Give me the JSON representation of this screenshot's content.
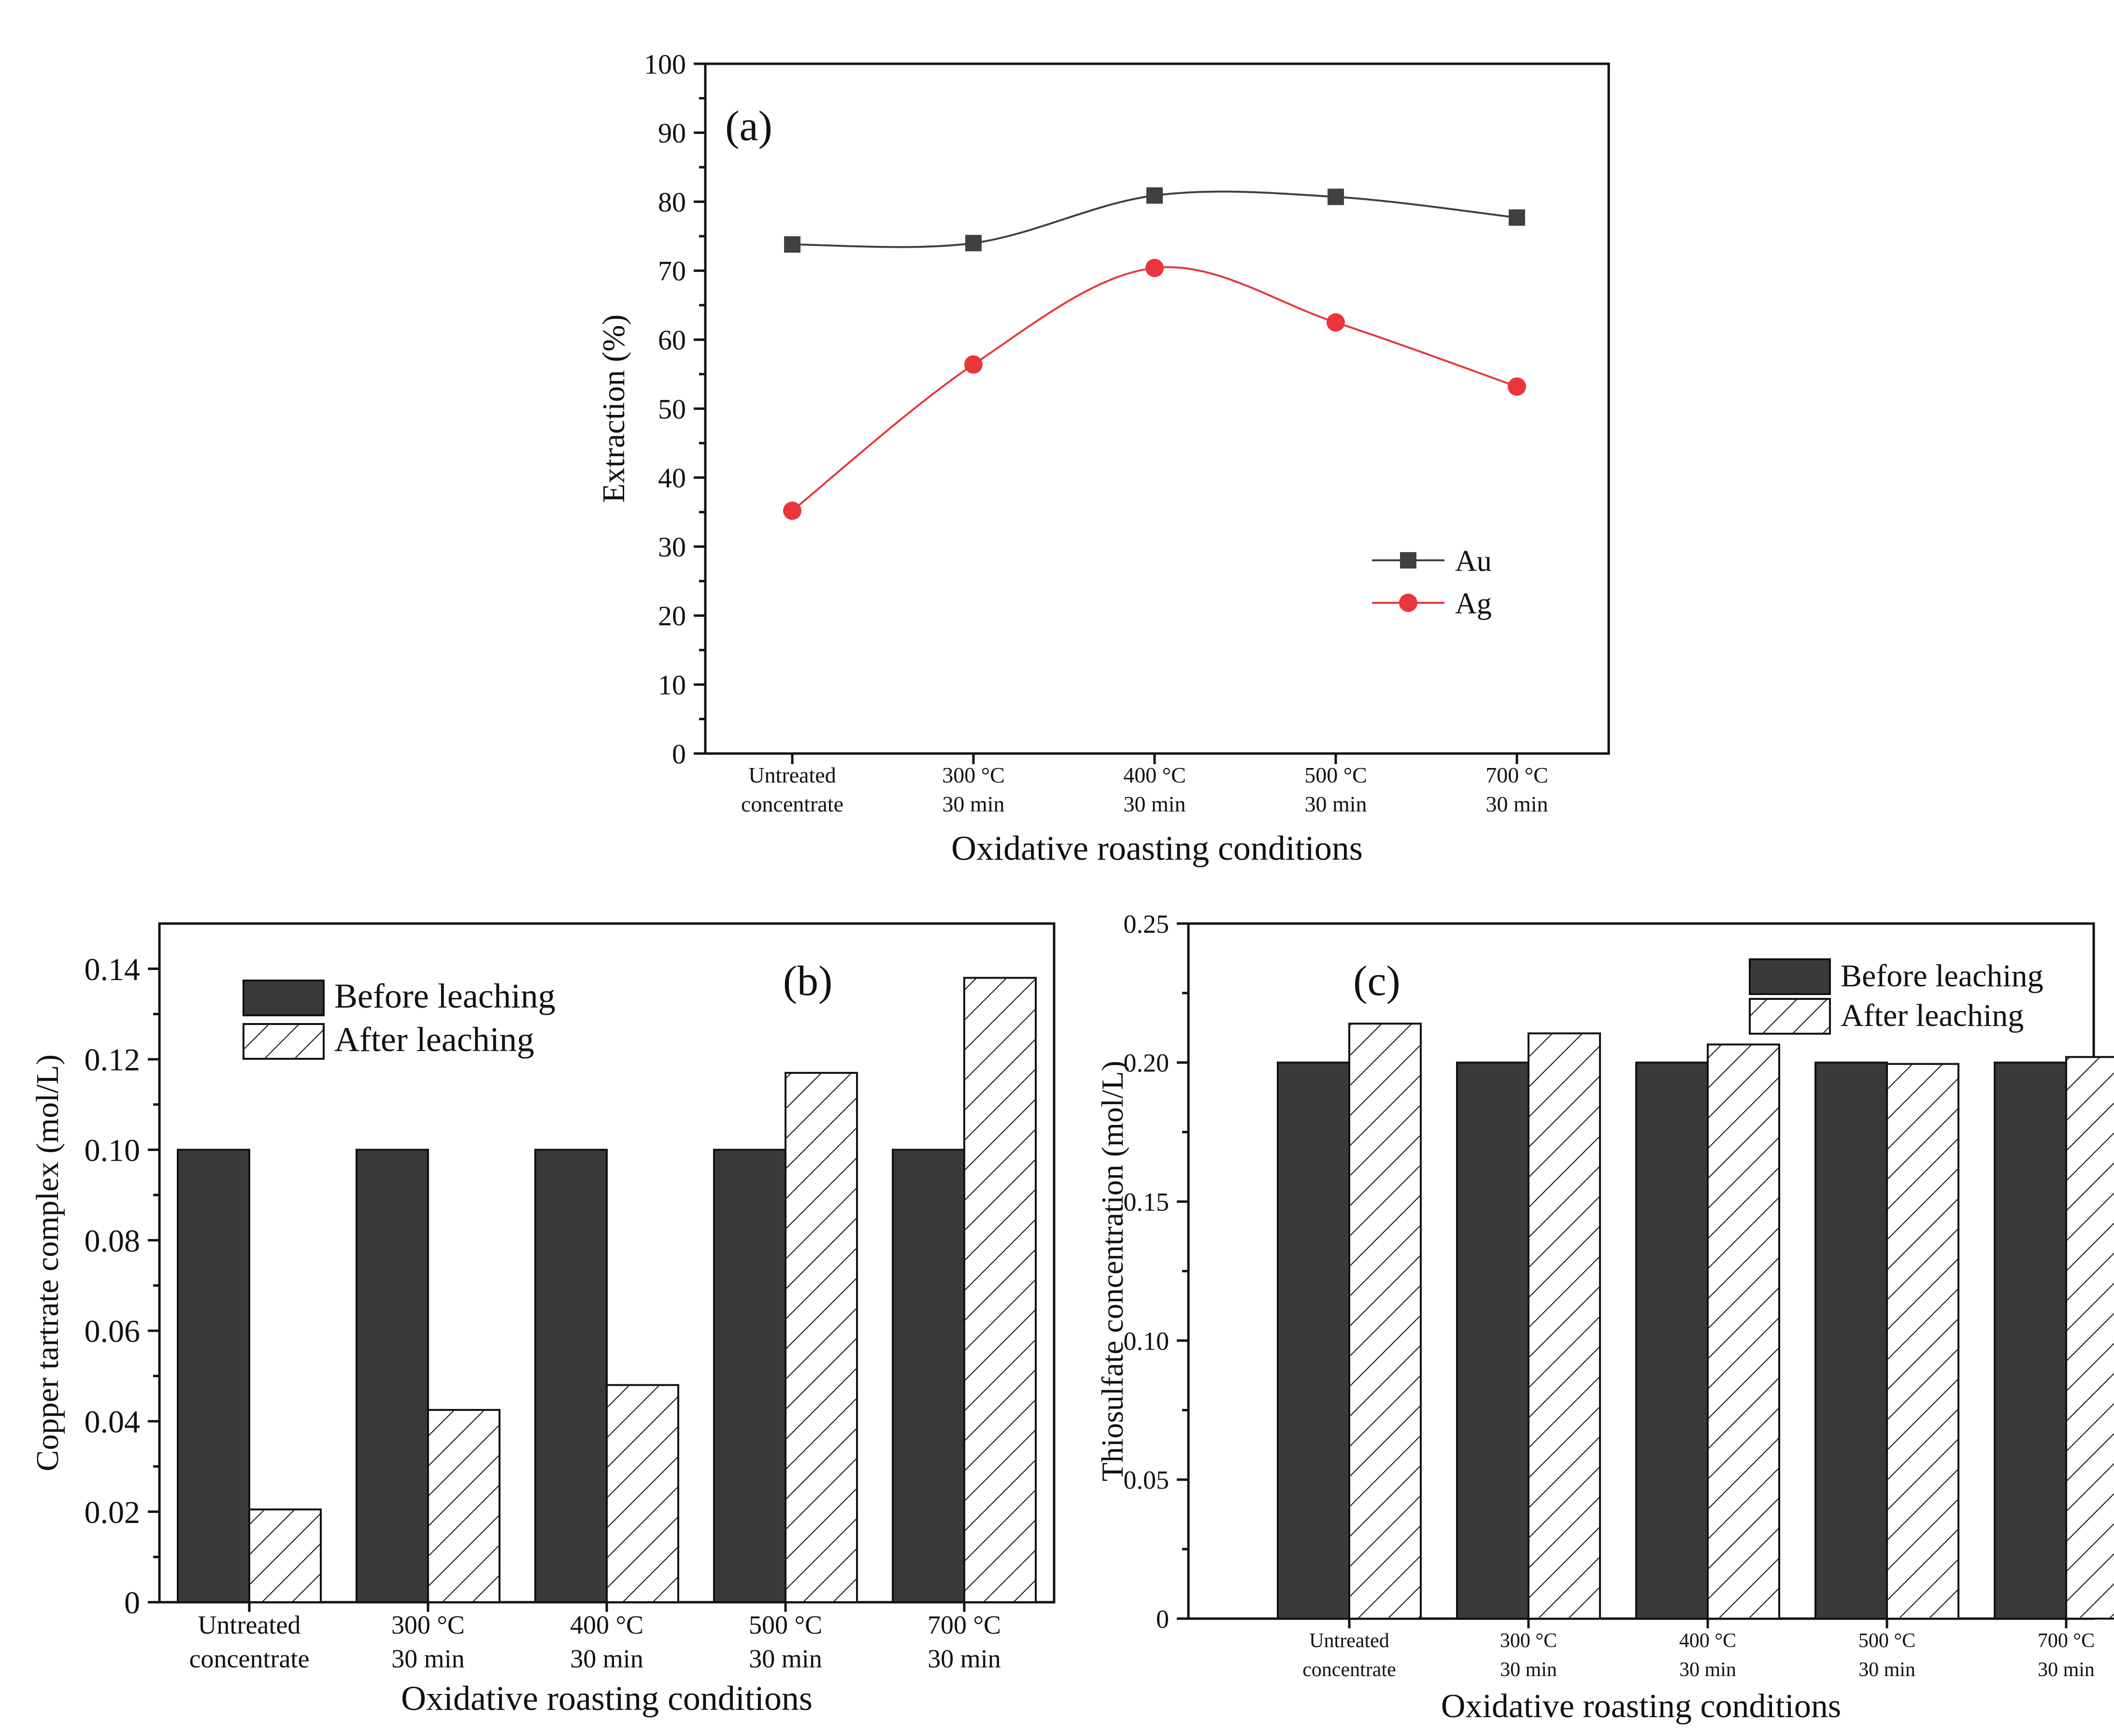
{
  "chart_data": [
    {
      "type": "line",
      "panel_label": "(a)",
      "title": "",
      "xlabel": "Oxidative roasting conditions",
      "ylabel": "Extraction (%)",
      "categories": [
        [
          "Untreated",
          "concentrate"
        ],
        [
          "300 °C",
          "30 min"
        ],
        [
          "400 °C",
          "30 min"
        ],
        [
          "500 °C",
          "30 min"
        ],
        [
          "700 °C",
          "30 min"
        ]
      ],
      "ylim": [
        0,
        100
      ],
      "yticks": [
        "0",
        "10",
        "20",
        "30",
        "40",
        "50",
        "60",
        "70",
        "80",
        "90",
        "100"
      ],
      "legend_position": "lower-right",
      "series": [
        {
          "name": "Au",
          "values": [
            73.8,
            74.0,
            80.9,
            80.7,
            77.7
          ],
          "color": "#404040",
          "marker": "square"
        },
        {
          "name": "Ag",
          "values": [
            35.2,
            56.4,
            70.4,
            62.5,
            53.2
          ],
          "color": "#e8363b",
          "marker": "circle"
        }
      ]
    },
    {
      "type": "bar",
      "panel_label": "(b)",
      "title": "",
      "xlabel": "Oxidative roasting conditions",
      "ylabel": "Copper tartrate complex (mol/L)",
      "categories": [
        [
          "Untreated",
          "concentrate"
        ],
        [
          "300 °C",
          "30 min"
        ],
        [
          "400 °C",
          "30 min"
        ],
        [
          "500 °C",
          "30 min"
        ],
        [
          "700 °C",
          "30 min"
        ]
      ],
      "ylim": [
        0,
        0.15
      ],
      "yticks": [
        "0",
        "0.02",
        "0.04",
        "0.06",
        "0.08",
        "0.10",
        "0.12",
        "0.14"
      ],
      "legend_position": "top-left",
      "series": [
        {
          "name": "Before leaching",
          "values": [
            0.1,
            0.1,
            0.1,
            0.1,
            0.1
          ],
          "fill": "solid",
          "color": "#3a3a3a"
        },
        {
          "name": "After leaching",
          "values": [
            0.0205,
            0.0425,
            0.048,
            0.117,
            0.138
          ],
          "fill": "hatched",
          "color": "#111111"
        }
      ]
    },
    {
      "type": "bar",
      "panel_label": "(c)",
      "title": "",
      "xlabel": "Oxidative roasting conditions",
      "ylabel": "Thiosulfate concentration (mol/L)",
      "categories": [
        [
          "Untreated",
          "concentrate"
        ],
        [
          "300 °C",
          "30 min"
        ],
        [
          "400 °C",
          "30 min"
        ],
        [
          "500 °C",
          "30 min"
        ],
        [
          "700 °C",
          "30 min"
        ]
      ],
      "ylim": [
        0,
        0.25
      ],
      "yticks": [
        "0",
        "0.05",
        "0.10",
        "0.15",
        "0.20",
        "0.25"
      ],
      "legend_position": "top-right",
      "series": [
        {
          "name": "Before leaching",
          "values": [
            0.2,
            0.2,
            0.2,
            0.2,
            0.2
          ],
          "fill": "solid",
          "color": "#3a3a3a"
        },
        {
          "name": "After leaching",
          "values": [
            0.214,
            0.2105,
            0.2065,
            0.1995,
            0.202
          ],
          "fill": "hatched",
          "color": "#111111"
        }
      ]
    }
  ]
}
